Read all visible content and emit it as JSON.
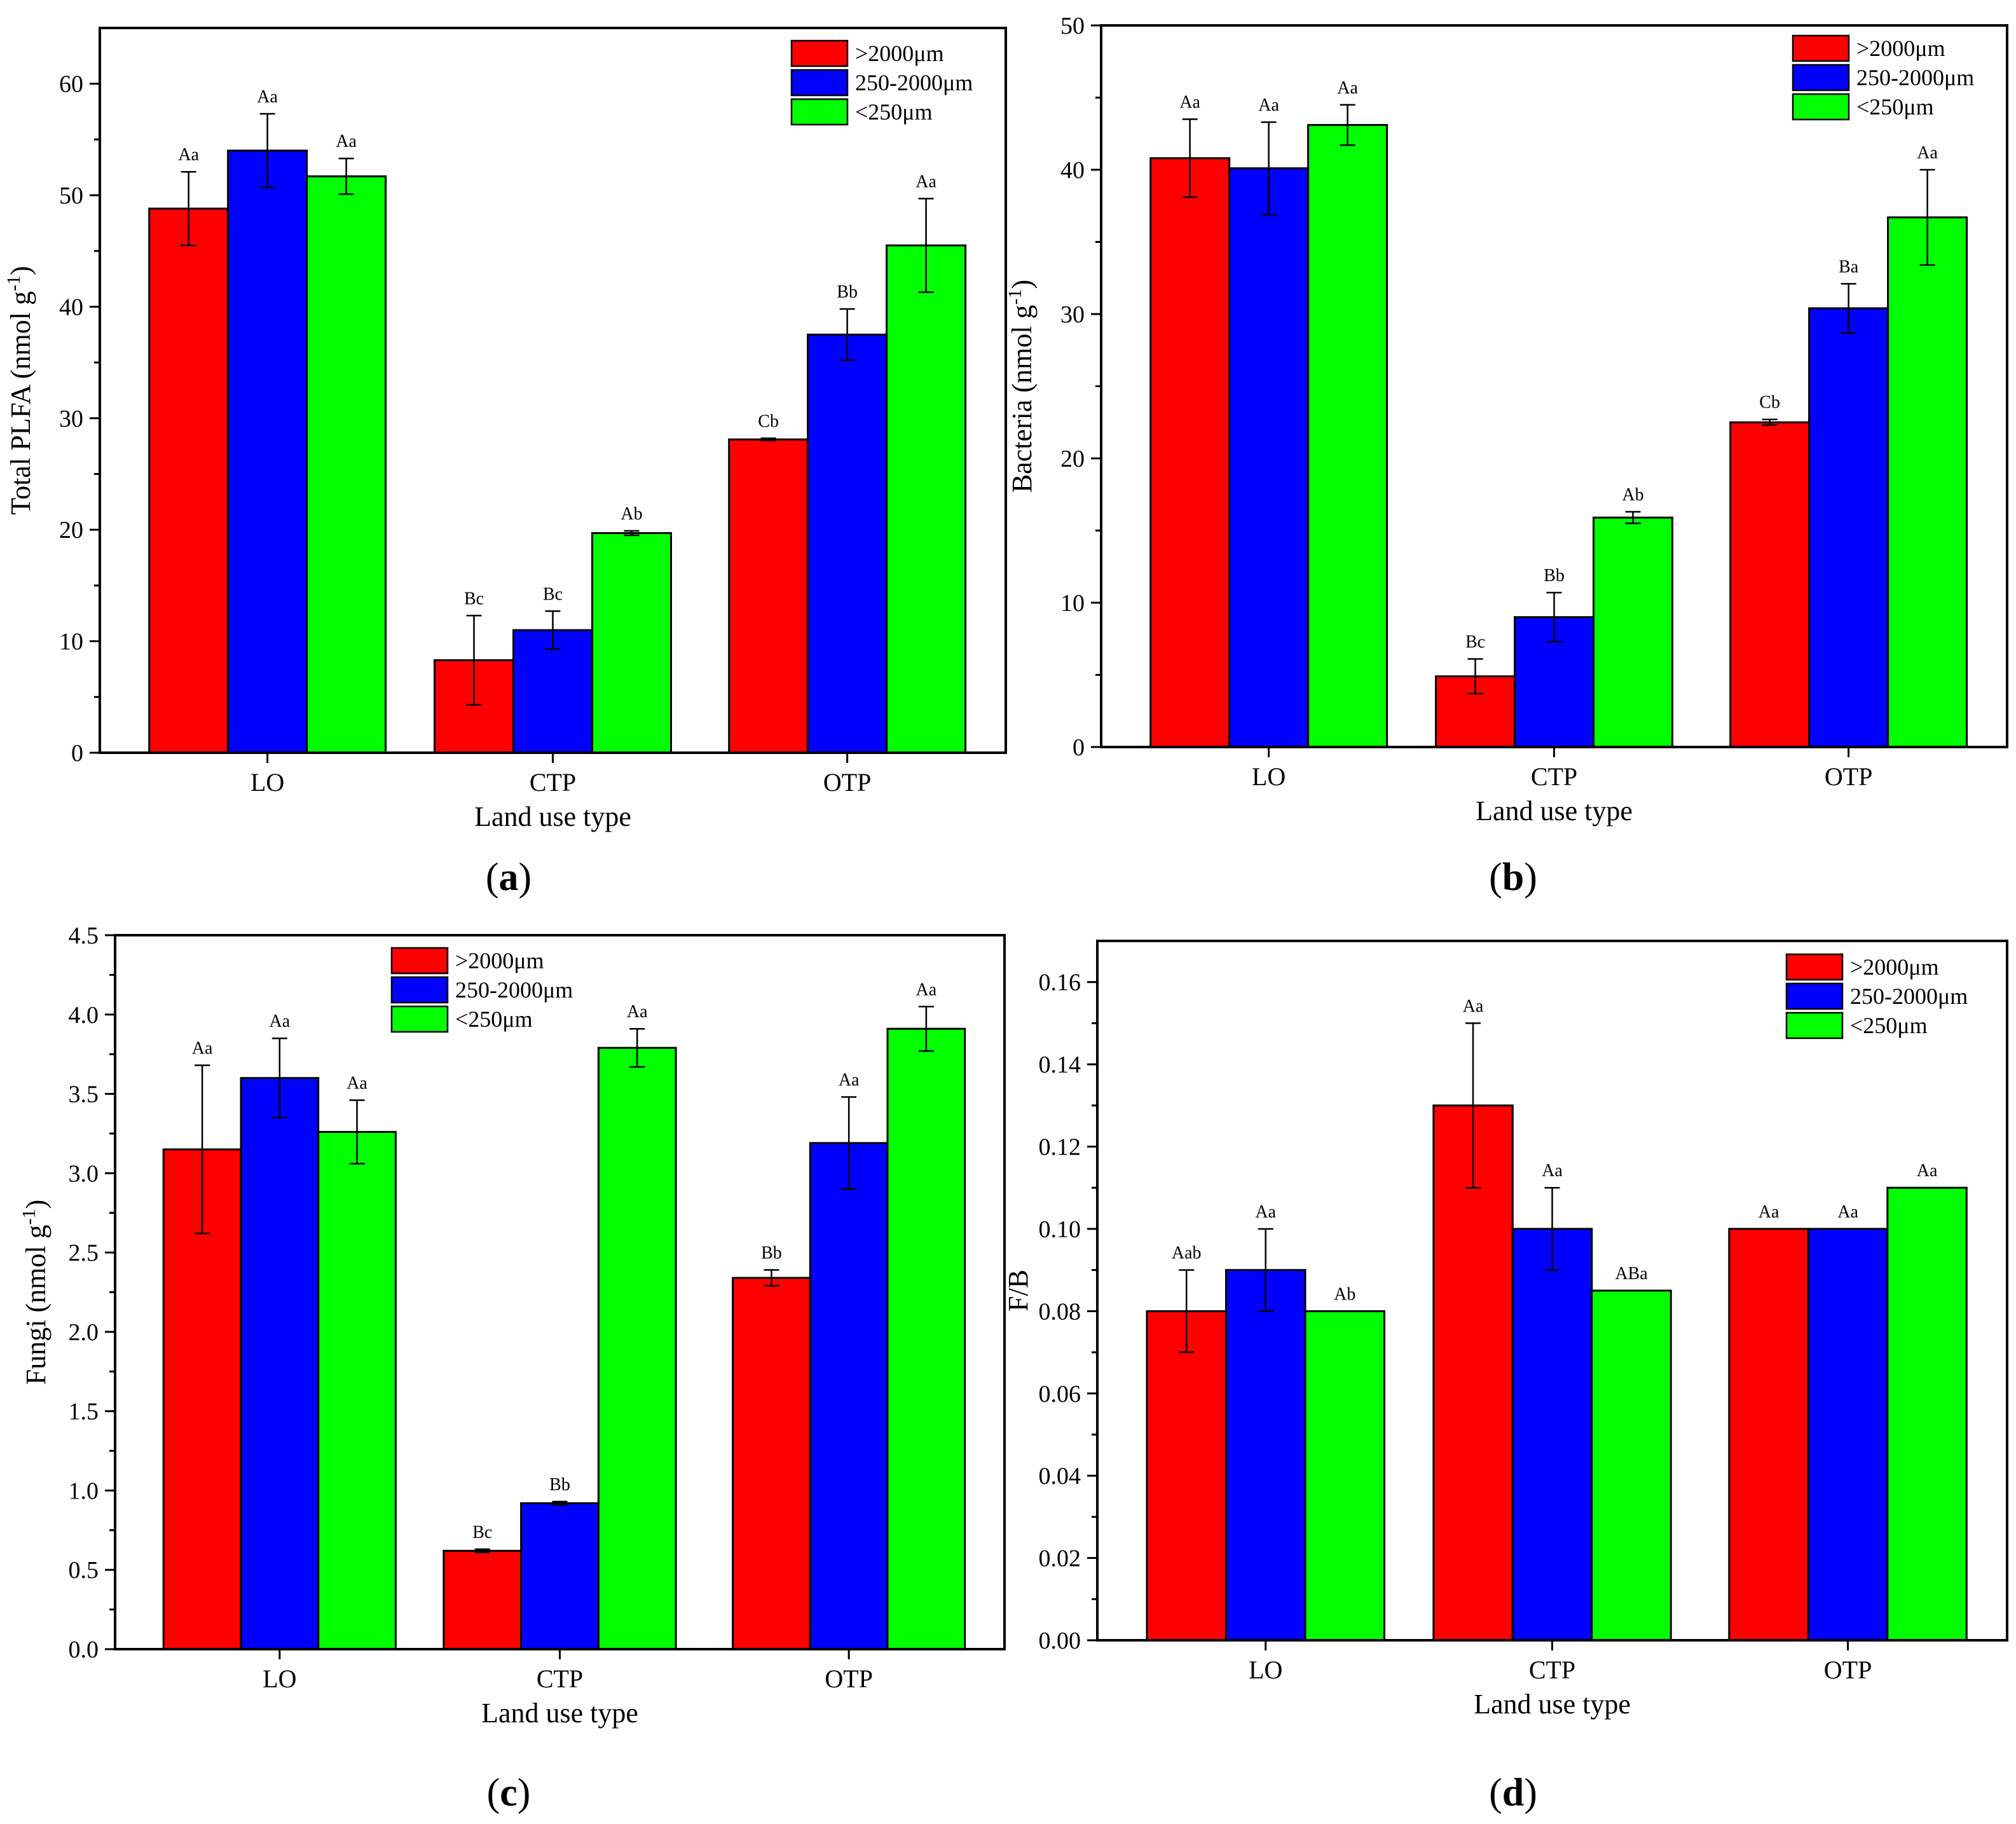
{
  "colors": {
    "red": "#ff0000",
    "blue": "#0000ff",
    "green": "#00ff00"
  },
  "series_names": [
    ">2000μm",
    "250-2000μm",
    "<250μm"
  ],
  "chart_data": [
    {
      "type": "bar",
      "panel_label": "a",
      "xlabel": "Land use type",
      "ylabel": "Total PLFA (nmol g",
      "ylabel_sup": "-1",
      "ylabel_end": ")",
      "categories": [
        "LO",
        "CTP",
        "OTP"
      ],
      "ylim": [
        0,
        65
      ],
      "yticks": [
        0,
        10,
        20,
        30,
        40,
        50,
        60
      ],
      "tick_labels": [
        "0",
        "10",
        "20",
        "30",
        "40",
        "50",
        "60"
      ],
      "legend_position": "top-right",
      "series": [
        {
          "name": ">2000μm",
          "color": "#ff0000",
          "values": [
            48.8,
            8.3,
            28.1
          ],
          "errors": [
            3.3,
            4.0,
            0.1
          ],
          "letters": [
            "Aa",
            "Bc",
            "Cb"
          ]
        },
        {
          "name": "250-2000μm",
          "color": "#0000ff",
          "values": [
            54.0,
            11.0,
            37.5
          ],
          "errors": [
            3.3,
            1.7,
            2.3
          ],
          "letters": [
            "Aa",
            "Bc",
            "Bb"
          ]
        },
        {
          "name": "<250μm",
          "color": "#00ff00",
          "values": [
            51.7,
            19.7,
            45.5
          ],
          "errors": [
            1.6,
            0.2,
            4.2
          ],
          "letters": [
            "Aa",
            "Ab",
            "Aa"
          ]
        }
      ]
    },
    {
      "type": "bar",
      "panel_label": "b",
      "xlabel": "Land use type",
      "ylabel": "Bacteria (nmol g",
      "ylabel_sup": "-1",
      "ylabel_end": ")",
      "categories": [
        "LO",
        "CTP",
        "OTP"
      ],
      "ylim": [
        0,
        50
      ],
      "yticks": [
        0,
        10,
        20,
        30,
        40,
        50
      ],
      "tick_labels": [
        "0",
        "10",
        "20",
        "30",
        "40",
        "50"
      ],
      "legend_position": "top-right",
      "series": [
        {
          "name": ">2000μm",
          "color": "#ff0000",
          "values": [
            40.8,
            4.9,
            22.5
          ],
          "errors": [
            2.7,
            1.2,
            0.2
          ],
          "letters": [
            "Aa",
            "Bc",
            "Cb"
          ]
        },
        {
          "name": "250-2000μm",
          "color": "#0000ff",
          "values": [
            40.1,
            9.0,
            30.4
          ],
          "errors": [
            3.2,
            1.7,
            1.7
          ],
          "letters": [
            "Aa",
            "Bb",
            "Ba"
          ]
        },
        {
          "name": "<250μm",
          "color": "#00ff00",
          "values": [
            43.1,
            15.9,
            36.7
          ],
          "errors": [
            1.4,
            0.4,
            3.3
          ],
          "letters": [
            "Aa",
            "Ab",
            "Aa"
          ]
        }
      ]
    },
    {
      "type": "bar",
      "panel_label": "c",
      "xlabel": "Land use type",
      "ylabel": "Fungi (nmol g",
      "ylabel_sup": "-1",
      "ylabel_end": ")",
      "categories": [
        "LO",
        "CTP",
        "OTP"
      ],
      "ylim": [
        0,
        4.5
      ],
      "yticks": [
        0,
        0.5,
        1,
        1.5,
        2,
        2.5,
        3,
        3.5,
        4,
        4.5
      ],
      "tick_labels": [
        "0.0",
        "0.5",
        "1.0",
        "1.5",
        "2.0",
        "2.5",
        "3.0",
        "3.5",
        "4.0",
        "4.5"
      ],
      "legend_position": "top-center",
      "series": [
        {
          "name": ">2000μm",
          "color": "#ff0000",
          "values": [
            3.15,
            0.62,
            2.34
          ],
          "errors": [
            0.53,
            0.01,
            0.05
          ],
          "letters": [
            "Aa",
            "Bc",
            "Bb"
          ]
        },
        {
          "name": "250-2000μm",
          "color": "#0000ff",
          "values": [
            3.6,
            0.92,
            3.19
          ],
          "errors": [
            0.25,
            0.01,
            0.29
          ],
          "letters": [
            "Aa",
            "Bb",
            "Aa"
          ]
        },
        {
          "name": "<250μm",
          "color": "#00ff00",
          "values": [
            3.26,
            3.79,
            3.91
          ],
          "errors": [
            0.2,
            0.12,
            0.14
          ],
          "letters": [
            "Aa",
            "Aa",
            "Aa"
          ]
        }
      ]
    },
    {
      "type": "bar",
      "panel_label": "d",
      "xlabel": "Land use type",
      "ylabel": "F/B",
      "ylabel_sup": "",
      "ylabel_end": "",
      "categories": [
        "LO",
        "CTP",
        "OTP"
      ],
      "ylim": [
        0,
        0.17
      ],
      "yticks": [
        0,
        0.02,
        0.04,
        0.06,
        0.08,
        0.1,
        0.12,
        0.14,
        0.16
      ],
      "tick_labels": [
        "0.00",
        "0.02",
        "0.04",
        "0.06",
        "0.08",
        "0.10",
        "0.12",
        "0.14",
        "0.16"
      ],
      "legend_position": "top-right",
      "series": [
        {
          "name": ">2000μm",
          "color": "#ff0000",
          "values": [
            0.08,
            0.13,
            0.1
          ],
          "errors": [
            0.01,
            0.02,
            0.0
          ],
          "letters": [
            "Aab",
            "Aa",
            "Aa"
          ]
        },
        {
          "name": "250-2000μm",
          "color": "#0000ff",
          "values": [
            0.09,
            0.1,
            0.1
          ],
          "errors": [
            0.01,
            0.01,
            0.0
          ],
          "letters": [
            "Aa",
            "Aa",
            "Aa"
          ]
        },
        {
          "name": "<250μm",
          "color": "#00ff00",
          "values": [
            0.08,
            0.085,
            0.11
          ],
          "errors": [
            0.0,
            0.0,
            0.0
          ],
          "letters": [
            "Ab",
            "ABa",
            "Aa"
          ]
        }
      ]
    }
  ]
}
